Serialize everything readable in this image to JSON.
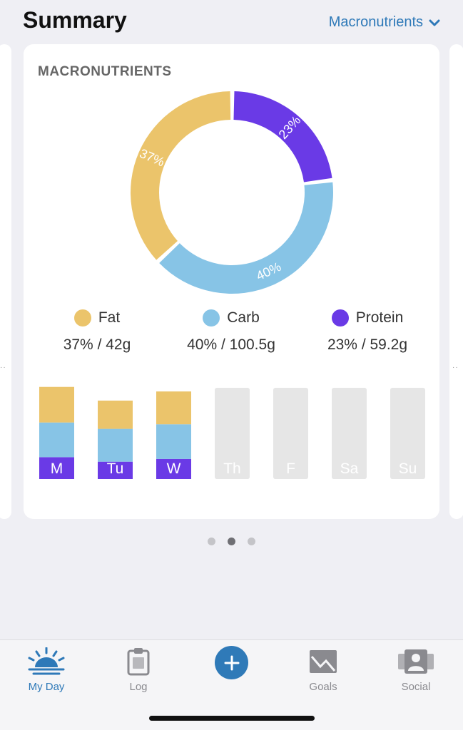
{
  "header": {
    "title": "Summary",
    "dropdown_label": "Macronutrients"
  },
  "card": {
    "title": "MACRONUTRIENTS"
  },
  "chart_data": {
    "type": "pie",
    "title": "MACRONUTRIENTS",
    "slices": [
      {
        "name": "Fat",
        "percent": 37,
        "label": "37%",
        "color": "#ebc46b"
      },
      {
        "name": "Protein",
        "percent": 23,
        "label": "23%",
        "color": "#6a3ae6"
      },
      {
        "name": "Carb",
        "percent": 40,
        "label": "40%",
        "color": "#87c4e6"
      }
    ]
  },
  "legend": [
    {
      "name": "Fat",
      "value": "37% / 42g",
      "color": "#ebc46b"
    },
    {
      "name": "Carb",
      "value": "40% / 100.5g",
      "color": "#87c4e6"
    },
    {
      "name": "Protein",
      "value": "23% / 59.2g",
      "color": "#6a3ae6"
    }
  ],
  "weekly": {
    "days": [
      "M",
      "Tu",
      "W",
      "Th",
      "F",
      "Sa",
      "Su"
    ],
    "series": [
      {
        "name": "Protein",
        "color": "#6a3ae6",
        "values": [
          0.24,
          0.19,
          0.22,
          0,
          0,
          0,
          0
        ]
      },
      {
        "name": "Carb",
        "color": "#87c4e6",
        "values": [
          0.38,
          0.36,
          0.38,
          0,
          0,
          0,
          0
        ]
      },
      {
        "name": "Fat",
        "color": "#ebc46b",
        "values": [
          0.39,
          0.31,
          0.36,
          0,
          0,
          0,
          0
        ]
      }
    ],
    "empty_color": "#e6e6e6"
  },
  "pager": {
    "count": 3,
    "active": 1
  },
  "tabs": [
    {
      "label": "My Day",
      "icon": "sunrise-icon",
      "active": true
    },
    {
      "label": "Log",
      "icon": "clipboard-icon",
      "active": false
    },
    {
      "label": "",
      "icon": "plus-icon",
      "active": false
    },
    {
      "label": "Goals",
      "icon": "mountain-icon",
      "active": false
    },
    {
      "label": "Social",
      "icon": "people-icon",
      "active": false
    }
  ],
  "colors": {
    "accent": "#2e79b8",
    "fat": "#ebc46b",
    "carb": "#87c4e6",
    "protein": "#6a3ae6"
  }
}
